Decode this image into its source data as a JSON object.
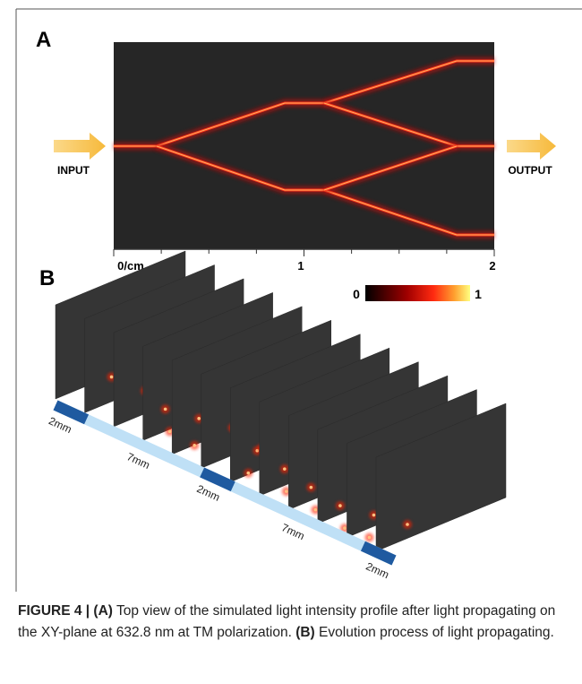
{
  "panel_a": {
    "label": "A",
    "input_label": "INPUT",
    "output_label": "OUTPUT",
    "axis_labels": [
      "0/cm",
      "1",
      "2"
    ]
  },
  "panel_b": {
    "label": "B",
    "colorbar_labels": [
      "0",
      "1"
    ],
    "segment_labels": [
      "2mm",
      "7mm",
      "2mm",
      "7mm",
      "2mm"
    ]
  },
  "caption": {
    "parts": [
      "FIGURE 4 | (A)",
      " Top view of the simulated light intensity profile after light propagating on the XY-plane at 632.8 nm at TM polarization. ",
      "(B)",
      " Evolution process of light propagating."
    ]
  }
}
